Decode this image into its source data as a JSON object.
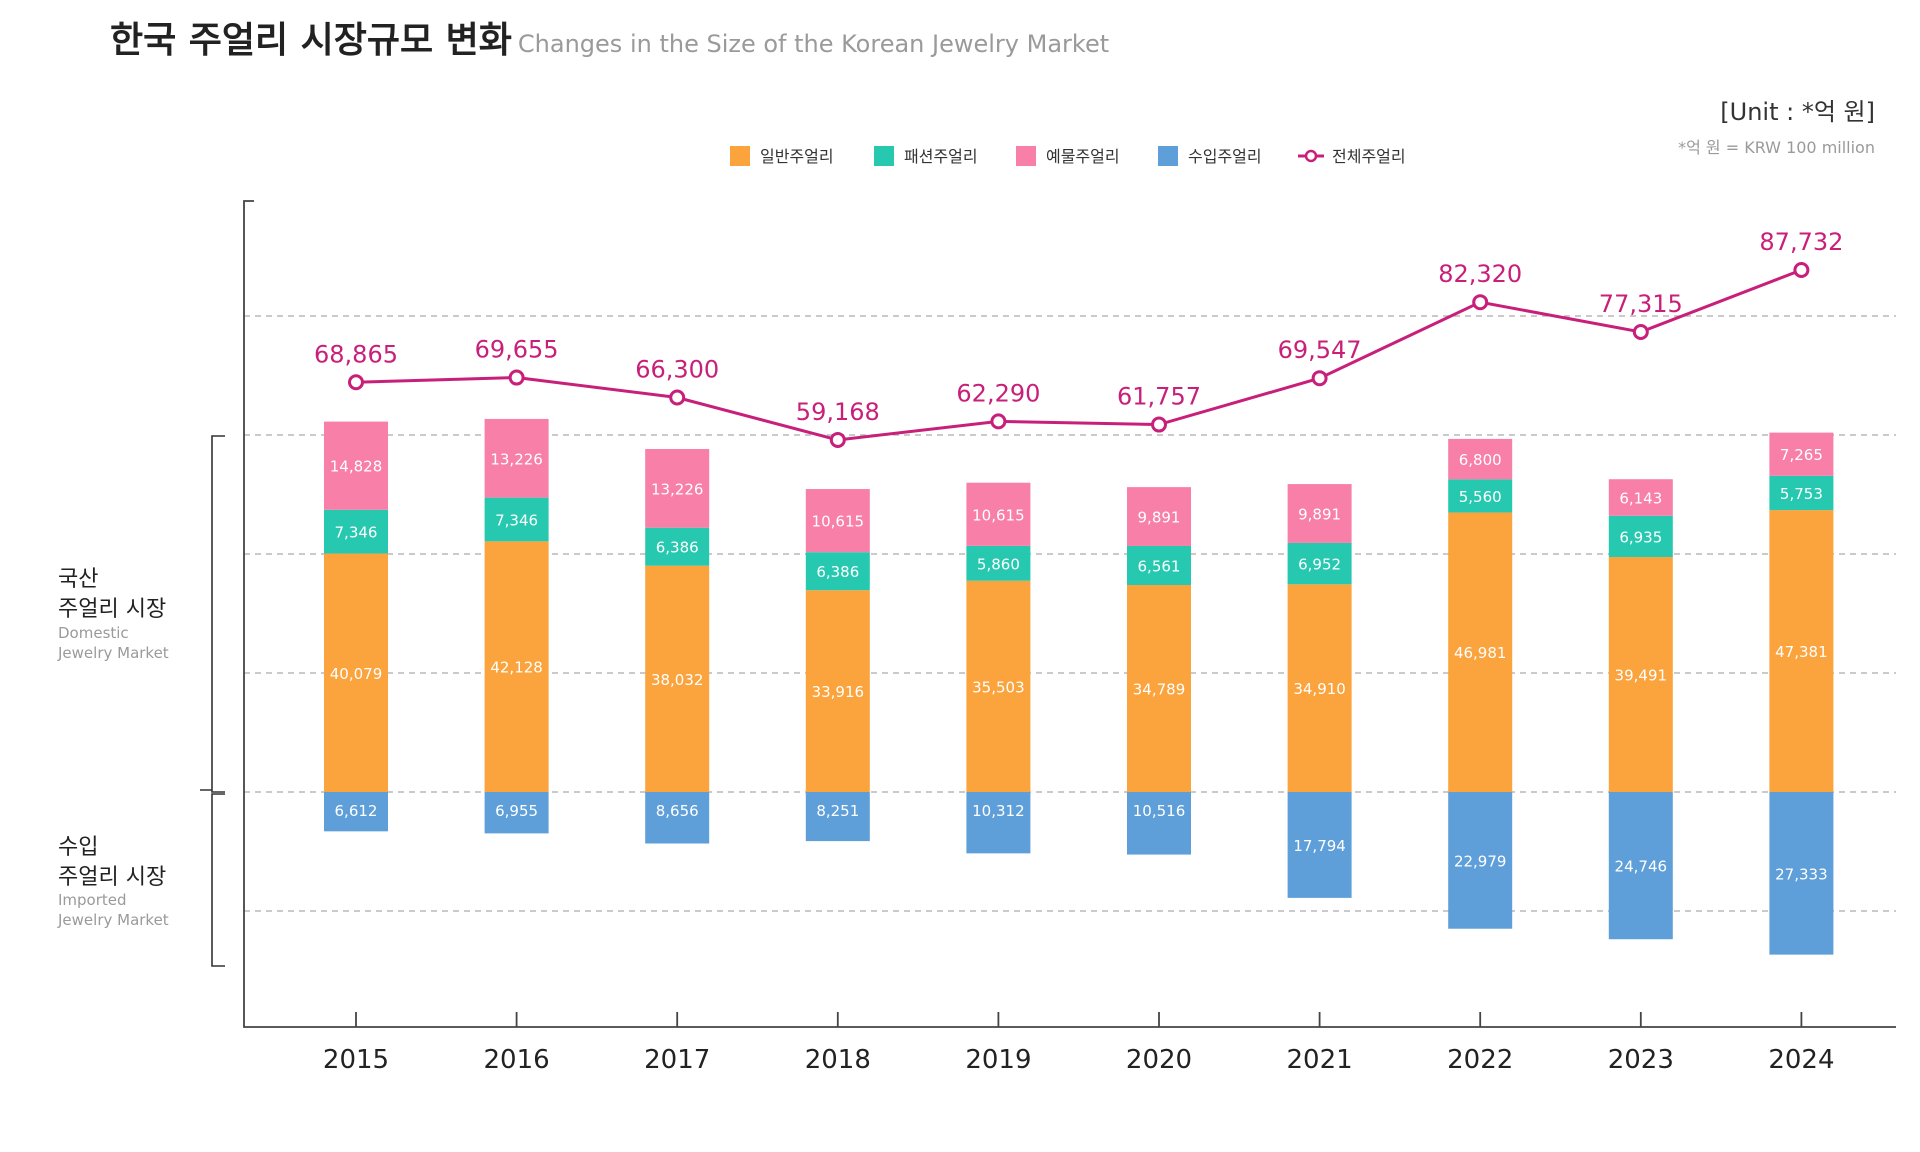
{
  "chart_data": {
    "type": "bar",
    "title": "한국 주얼리 시장규모 변화",
    "subtitle": "Changes in the Size of the Korean Jewelry Market",
    "unit": "[Unit : *억 원]",
    "unit_note": "*억 원 = KRW 100 million",
    "legend_position": "top-center",
    "grid": true,
    "categories": [
      "2015",
      "2016",
      "2017",
      "2018",
      "2019",
      "2020",
      "2021",
      "2022",
      "2023",
      "2024"
    ],
    "series": [
      {
        "name": "일반주얼리",
        "color": "#fba33c",
        "kind": "bar",
        "group": "domestic",
        "values": [
          40079,
          42128,
          38032,
          33916,
          35503,
          34789,
          34910,
          46981,
          39491,
          47381
        ]
      },
      {
        "name": "패션주얼리",
        "color": "#26c9b0",
        "kind": "bar",
        "group": "domestic",
        "values": [
          7346,
          7346,
          6386,
          6386,
          5860,
          6561,
          6952,
          5560,
          6935,
          5753
        ]
      },
      {
        "name": "예물주얼리",
        "color": "#f77fa8",
        "kind": "bar",
        "group": "domestic",
        "values": [
          14828,
          13226,
          13226,
          10615,
          10615,
          9891,
          9891,
          6800,
          6143,
          7265
        ]
      },
      {
        "name": "수입주얼리",
        "color": "#5e9fd9",
        "kind": "bar",
        "group": "imported",
        "values": [
          6612,
          6955,
          8656,
          8251,
          10312,
          10516,
          17794,
          22979,
          24746,
          27333
        ]
      },
      {
        "name": "전체주얼리",
        "color": "#c8207a",
        "kind": "line",
        "values": [
          68865,
          69655,
          66300,
          59168,
          62290,
          61757,
          69547,
          82320,
          77315,
          87732
        ]
      }
    ],
    "ylim": [
      -40000,
      100000
    ]
  },
  "side_labels": {
    "domestic": {
      "ko": [
        "국산",
        "주얼리 시장"
      ],
      "en": [
        "Domestic",
        "Jewelry Market"
      ]
    },
    "imported": {
      "ko": [
        "수입",
        "주얼리 시장"
      ],
      "en": [
        "Imported",
        "Jewelry Market"
      ]
    }
  }
}
